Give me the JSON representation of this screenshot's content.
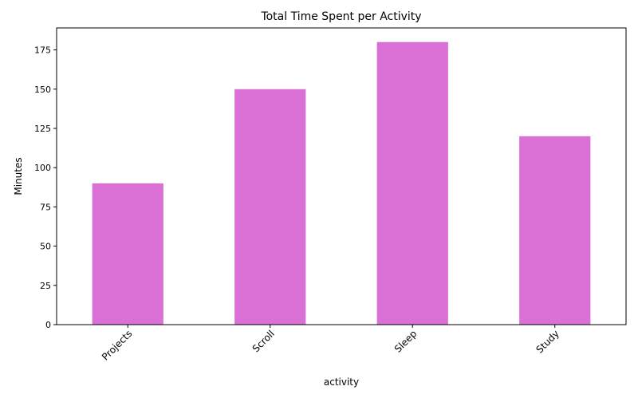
{
  "chart_data": {
    "type": "bar",
    "title": "Total Time Spent per Activity",
    "xlabel": "activity",
    "ylabel": "Minutes",
    "categories": [
      "Projects",
      "Scroll",
      "Sleep",
      "Study"
    ],
    "values": [
      90,
      150,
      180,
      120
    ],
    "ylim": [
      0,
      189
    ],
    "yticks": [
      0,
      25,
      50,
      75,
      100,
      125,
      150,
      175
    ],
    "grid": false,
    "legend": "none",
    "bar_color": "#da70d6"
  }
}
